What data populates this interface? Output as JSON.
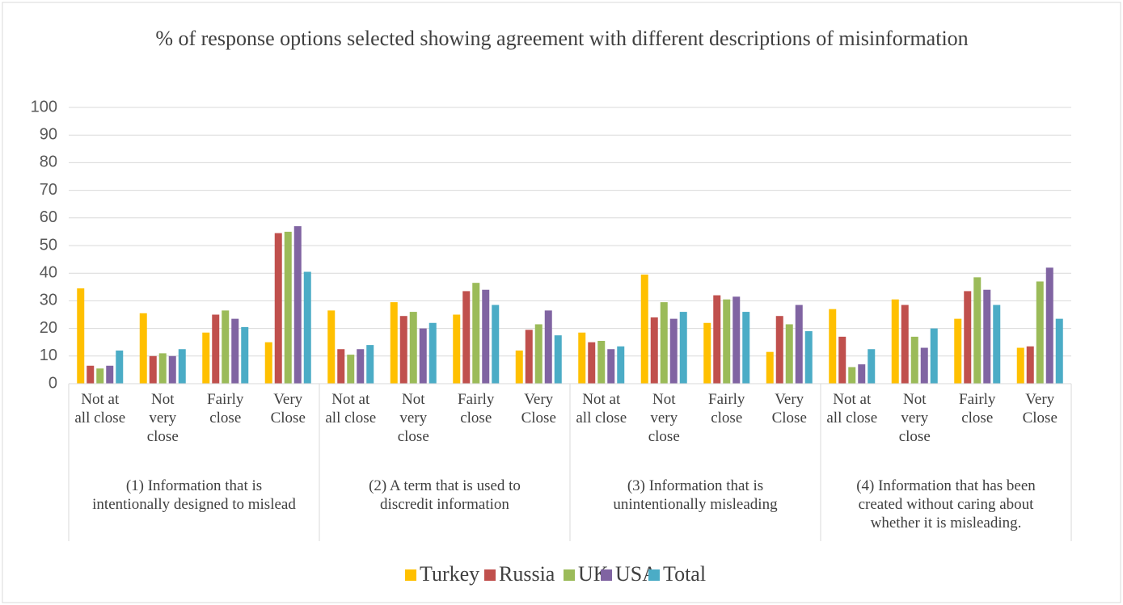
{
  "chart_data": {
    "type": "bar",
    "title": "% of response options selected showing agreement with different descriptions of misinformation",
    "categories": [
      "Not at all close",
      "Not very close",
      "Fairly close",
      "Very Close",
      "Not at all close",
      "Not very close",
      "Fairly close",
      "Very Close",
      "Not at all close",
      "Not very close",
      "Fairly close",
      "Very Close",
      "Not at all close",
      "Not very close",
      "Fairly close",
      "Very Close"
    ],
    "groups": [
      "(1) Information that is intentionally designed to mislead",
      "(2) A term that is used to discredit information",
      "(3) Information that is unintentionally misleading",
      "(4) Information that has been created without caring about whether it is misleading."
    ],
    "series": [
      {
        "name": "Turkey",
        "color": "#FFC000",
        "values": [
          34.5,
          25.5,
          18.5,
          15,
          26.5,
          29.5,
          25,
          12,
          18.5,
          39.5,
          22,
          11.5,
          27,
          30.5,
          23.5,
          13
        ]
      },
      {
        "name": "Russia",
        "color": "#C0504D",
        "values": [
          6.5,
          10,
          25,
          54.5,
          12.5,
          24.5,
          33.5,
          19.5,
          15,
          24,
          32,
          24.5,
          17,
          28.5,
          33.5,
          13.5
        ]
      },
      {
        "name": "UK",
        "color": "#9BBB59",
        "values": [
          5.5,
          11,
          26.5,
          55,
          10.5,
          26,
          36.5,
          21.5,
          15.5,
          29.5,
          30.5,
          21.5,
          6,
          17,
          38.5,
          37
        ]
      },
      {
        "name": "USA",
        "color": "#8064A2",
        "values": [
          6.5,
          10,
          23.5,
          57,
          12.5,
          20,
          34,
          26.5,
          12.5,
          23.5,
          31.5,
          28.5,
          7,
          13,
          34,
          42
        ]
      },
      {
        "name": "Total",
        "color": "#4BACC6",
        "values": [
          12,
          12.5,
          20.5,
          40.5,
          14,
          22,
          28.5,
          17.5,
          13.5,
          26,
          26,
          19,
          12.5,
          20,
          28.5,
          23.5
        ]
      }
    ],
    "ylim": [
      0,
      100
    ],
    "yticks": [
      0,
      10,
      20,
      30,
      40,
      50,
      60,
      70,
      80,
      90,
      100
    ],
    "grid": true,
    "legend": "bottom"
  }
}
